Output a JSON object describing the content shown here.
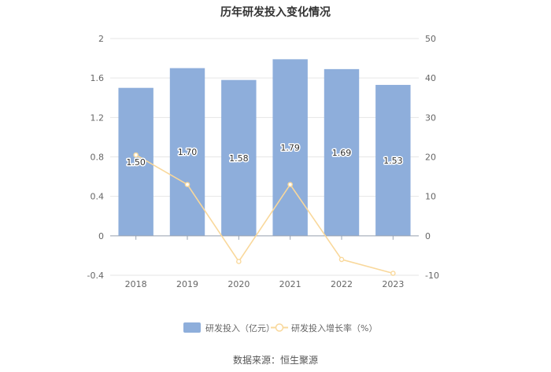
{
  "chart_data": {
    "type": "bar",
    "title": "历年研发投入变化情况",
    "categories": [
      "2018",
      "2019",
      "2020",
      "2021",
      "2022",
      "2023"
    ],
    "series": [
      {
        "name": "研发投入（亿元）",
        "type": "bar",
        "axis": "left",
        "color": "#8eaedb",
        "values": [
          1.5,
          1.7,
          1.58,
          1.79,
          1.69,
          1.53
        ],
        "labels": [
          "1.50",
          "1.70",
          "1.58",
          "1.79",
          "1.69",
          "1.53"
        ]
      },
      {
        "name": "研发投入增长率（%）",
        "type": "line",
        "axis": "right",
        "color": "#f9d89b",
        "values": [
          20.5,
          13.0,
          -6.5,
          13.0,
          -6.0,
          -9.5
        ]
      }
    ],
    "y_left": {
      "min": -0.4,
      "max": 2,
      "ticks": [
        "-0.4",
        "0",
        "0.4",
        "0.8",
        "1.2",
        "1.6",
        "2"
      ]
    },
    "y_right": {
      "min": -10,
      "max": 50,
      "ticks": [
        "-10",
        "0",
        "10",
        "20",
        "30",
        "40",
        "50"
      ]
    },
    "grid": true,
    "legend_position": "bottom"
  },
  "source_text": "数据来源：恒生聚源"
}
